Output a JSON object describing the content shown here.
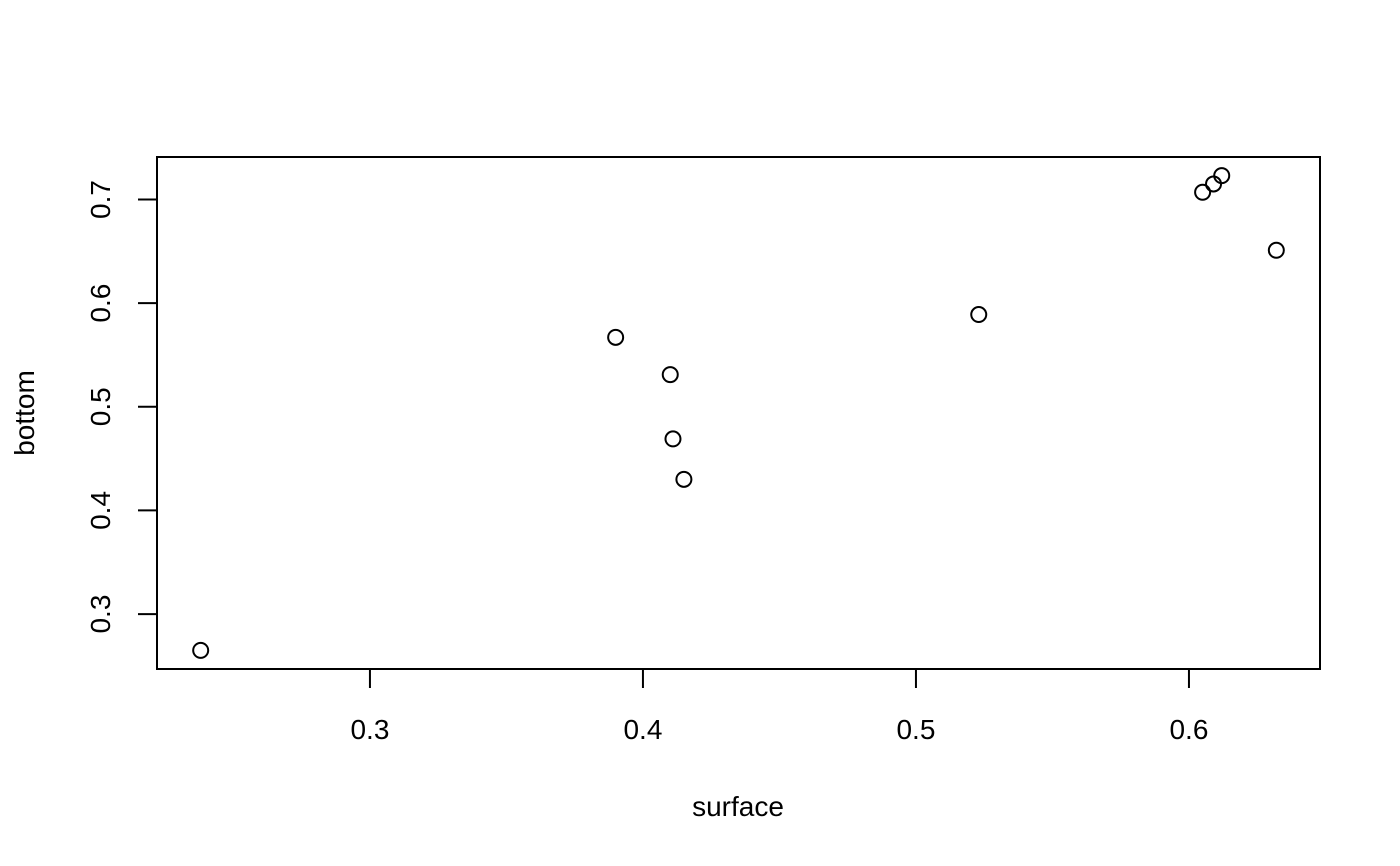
{
  "chart_data": {
    "type": "scatter",
    "title": "",
    "xlabel": "surface",
    "ylabel": "bottom",
    "xlim": [
      0.222,
      0.648
    ],
    "ylim": [
      0.247,
      0.741
    ],
    "x_ticks": [
      0.3,
      0.4,
      0.5,
      0.6
    ],
    "x_tick_labels": [
      "0.3",
      "0.4",
      "0.5",
      "0.6"
    ],
    "y_ticks": [
      0.3,
      0.4,
      0.5,
      0.6,
      0.7
    ],
    "y_tick_labels": [
      "0.3",
      "0.4",
      "0.5",
      "0.6",
      "0.7"
    ],
    "grid": false,
    "legend": "none",
    "marker": "open-circle",
    "points": [
      {
        "x": 0.238,
        "y": 0.265
      },
      {
        "x": 0.39,
        "y": 0.567
      },
      {
        "x": 0.41,
        "y": 0.531
      },
      {
        "x": 0.411,
        "y": 0.469
      },
      {
        "x": 0.415,
        "y": 0.43
      },
      {
        "x": 0.523,
        "y": 0.589
      },
      {
        "x": 0.605,
        "y": 0.707
      },
      {
        "x": 0.609,
        "y": 0.715
      },
      {
        "x": 0.612,
        "y": 0.723
      },
      {
        "x": 0.632,
        "y": 0.651
      }
    ]
  }
}
